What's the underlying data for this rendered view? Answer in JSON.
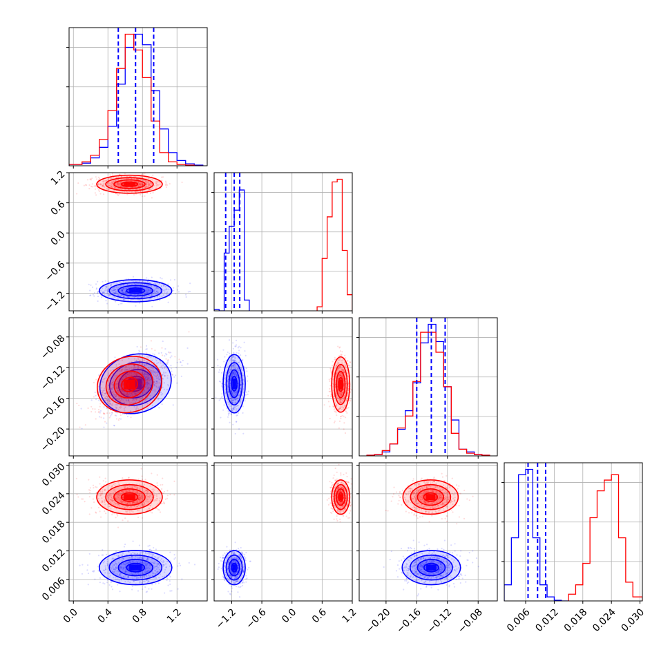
{
  "colors": {
    "blue": "#0000ff",
    "red": "#ff0000",
    "grid": "#b0b0b0"
  },
  "chart_data": {
    "type": "corner",
    "grid": true,
    "legend": "none",
    "parameters": [
      {
        "range": [
          -0.05,
          1.55
        ],
        "ticks": [
          0.0,
          0.4,
          0.8,
          1.2
        ],
        "tick_labels": [
          "0.0",
          "0.4",
          "0.8",
          "1.2"
        ]
      },
      {
        "range": [
          -1.55,
          1.2
        ],
        "ticks": [
          -1.2,
          -0.6,
          0.0,
          0.6,
          1.2
        ],
        "tick_labels": [
          "−1.2",
          "−0.6",
          "0.0",
          "0.6",
          "1.2"
        ]
      },
      {
        "range": [
          -0.235,
          -0.055
        ],
        "ticks": [
          -0.2,
          -0.16,
          -0.12,
          -0.08
        ],
        "tick_labels": [
          "−0.20",
          "−0.16",
          "−0.12",
          "−0.08"
        ]
      },
      {
        "range": [
          0.0015,
          0.0305
        ],
        "ticks": [
          0.006,
          0.012,
          0.018,
          0.024,
          0.03
        ],
        "tick_labels": [
          "0.006",
          "0.012",
          "0.018",
          "0.024",
          "0.030"
        ]
      }
    ],
    "quantiles_blue": [
      [
        0.52,
        0.72,
        0.93
      ],
      [
        -1.32,
        -1.15,
        -1.04
      ],
      [
        -0.16,
        -0.141,
        -0.123
      ],
      [
        0.0065,
        0.0085,
        0.0102
      ]
    ],
    "series": [
      {
        "color": "blue",
        "means": [
          0.72,
          -1.15,
          -0.141,
          0.0085
        ],
        "sds": [
          0.21,
          0.11,
          0.019,
          0.0018
        ],
        "correlations": [
          [
            0,
            2,
            0.5
          ]
        ],
        "marginals": [
          {
            "edges": [
              -0.05,
              0.1,
              0.2,
              0.3,
              0.4,
              0.5,
              0.6,
              0.7,
              0.8,
              0.9,
              1.0,
              1.1,
              1.2,
              1.3,
              1.4,
              1.5
            ],
            "values": [
              0.01,
              0.02,
              0.06,
              0.14,
              0.3,
              0.62,
              0.9,
              1.0,
              0.92,
              0.57,
              0.28,
              0.1,
              0.04,
              0.015,
              0.005
            ]
          },
          {
            "edges": [
              -1.55,
              -1.45,
              -1.35,
              -1.25,
              -1.15,
              -1.05,
              -0.95,
              -0.85
            ],
            "values": [
              0.01,
              0.0,
              0.43,
              0.63,
              0.75,
              0.9,
              0.08
            ]
          },
          {
            "edges": [
              -0.225,
              -0.215,
              -0.205,
              -0.195,
              -0.185,
              -0.175,
              -0.165,
              -0.155,
              -0.145,
              -0.135,
              -0.125,
              -0.115,
              -0.105,
              -0.095,
              -0.085,
              -0.075,
              -0.065
            ],
            "values": [
              0.005,
              0.01,
              0.03,
              0.09,
              0.2,
              0.34,
              0.55,
              0.85,
              0.99,
              0.86,
              0.52,
              0.27,
              0.05,
              0.03,
              0.01,
              0.005
            ]
          },
          {
            "edges": [
              0.0015,
              0.003,
              0.0045,
              0.006,
              0.0075,
              0.009,
              0.0105,
              0.012,
              0.0135,
              0.015
            ],
            "values": [
              0.12,
              0.47,
              0.94,
              0.98,
              0.47,
              0.12,
              0.03,
              0.005,
              0.0
            ]
          }
        ]
      },
      {
        "color": "red",
        "means": [
          0.65,
          0.97,
          -0.142,
          0.0233
        ],
        "sds": [
          0.19,
          0.09,
          0.018,
          0.0018
        ],
        "correlations": [
          [
            0,
            2,
            0.55
          ]
        ],
        "marginals": [
          {
            "edges": [
              -0.05,
              0.1,
              0.2,
              0.3,
              0.4,
              0.5,
              0.6,
              0.7,
              0.8,
              0.9,
              1.0,
              1.1,
              1.2,
              1.3,
              1.4,
              1.5
            ],
            "values": [
              0.01,
              0.03,
              0.08,
              0.2,
              0.42,
              0.74,
              1.0,
              0.88,
              0.67,
              0.34,
              0.1,
              0.03,
              0.01,
              0.005,
              0.0
            ]
          },
          {
            "edges": [
              0.5,
              0.6,
              0.7,
              0.8,
              0.9,
              1.0,
              1.1,
              1.2
            ],
            "values": [
              0.03,
              0.39,
              0.7,
              0.96,
              0.98,
              0.45,
              0.12
            ]
          },
          {
            "edges": [
              -0.225,
              -0.215,
              -0.205,
              -0.195,
              -0.185,
              -0.175,
              -0.165,
              -0.155,
              -0.145,
              -0.135,
              -0.125,
              -0.115,
              -0.105,
              -0.095,
              -0.085,
              -0.075,
              -0.065
            ],
            "values": [
              0.005,
              0.01,
              0.04,
              0.09,
              0.21,
              0.3,
              0.56,
              0.93,
              0.93,
              0.78,
              0.52,
              0.17,
              0.05,
              0.02,
              0.01,
              0.005
            ]
          },
          {
            "edges": [
              0.015,
              0.0165,
              0.018,
              0.0195,
              0.021,
              0.0225,
              0.024,
              0.0255,
              0.027,
              0.0285,
              0.0305
            ],
            "values": [
              0.05,
              0.12,
              0.28,
              0.62,
              0.82,
              0.9,
              0.94,
              0.47,
              0.14,
              0.03
            ]
          }
        ]
      }
    ]
  }
}
